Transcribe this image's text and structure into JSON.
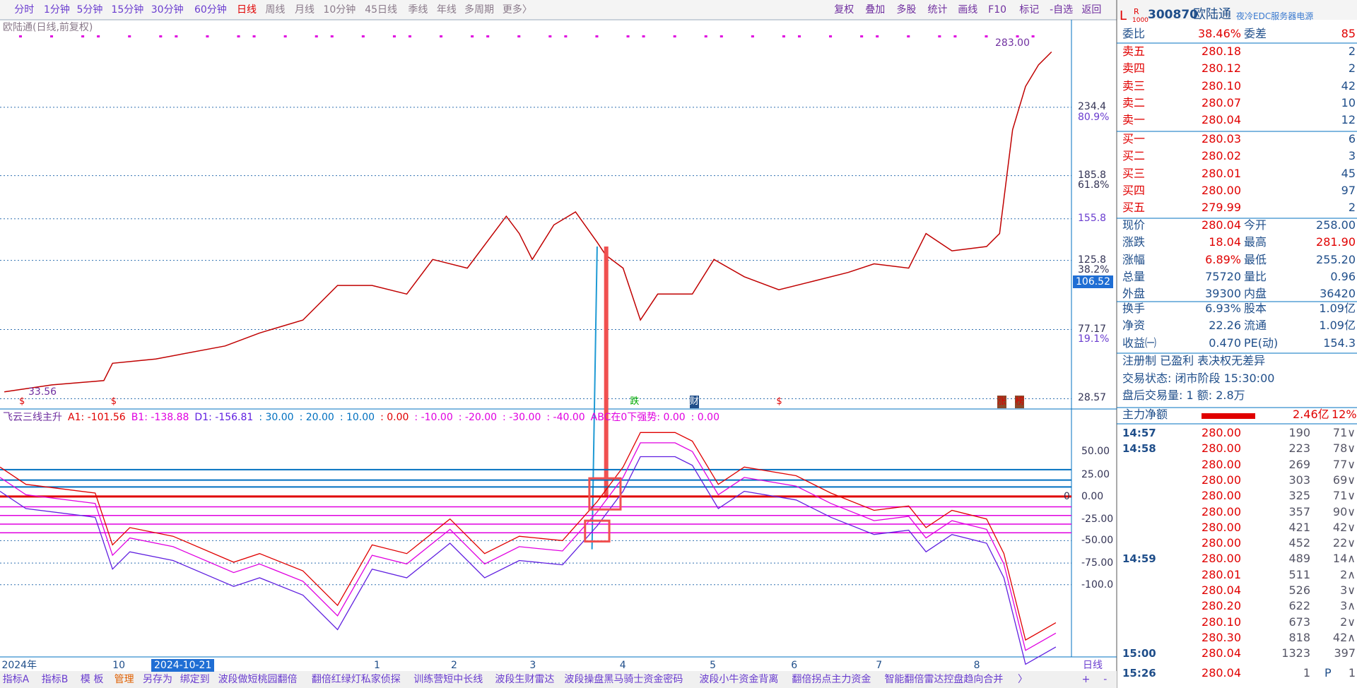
{
  "toolbar": {
    "periods": [
      "分时",
      "1分钟",
      "5分钟",
      "15分钟",
      "30分钟",
      "60分钟",
      "日线",
      "周线",
      "月线",
      "10分钟",
      "45日线",
      "季线",
      "年线",
      "多周期",
      "更多〉"
    ],
    "actions": [
      "复权",
      "叠加",
      "多股",
      "统计",
      "画线",
      "F10",
      "标记",
      "-自选",
      "返回"
    ]
  },
  "chart": {
    "title": "欧陆通(日线,前复权)",
    "high_label": "283.00",
    "low_label": "33.56",
    "current_price_label": "106.52",
    "price_axis": [
      "234.4",
      "80.9%",
      "185.8",
      "61.8%",
      "155.8",
      "125.8",
      "38.2%",
      "77.17",
      "19.1%",
      "28.57"
    ],
    "markers": [
      "$",
      "$",
      "跌",
      "财",
      "$",
      "涨",
      "榜"
    ]
  },
  "indicator": {
    "legend": [
      {
        "text": "飞云三线主升",
        "color": "#7030a0"
      },
      {
        "text": "A1: -101.56",
        "color": "#e00000"
      },
      {
        "text": "B1: -138.88",
        "color": "#e000e0"
      },
      {
        "text": "D1: -156.81",
        "color": "#6020e0"
      },
      {
        "text": ": 30.00",
        "color": "#0070c0"
      },
      {
        "text": ": 20.00",
        "color": "#0070c0"
      },
      {
        "text": ": 10.00",
        "color": "#0070c0"
      },
      {
        "text": ": 0.00",
        "color": "#e00000"
      },
      {
        "text": ": -10.00",
        "color": "#e000e0"
      },
      {
        "text": ": -20.00",
        "color": "#e000e0"
      },
      {
        "text": ": -30.00",
        "color": "#e000e0"
      },
      {
        "text": ": -40.00",
        "color": "#e000e0"
      },
      {
        "text": "ABC在0下强势: 0.00",
        "color": "#e000e0"
      },
      {
        "text": ": 0.00",
        "color": "#e000e0"
      }
    ],
    "axis": [
      "50.00",
      "25.00",
      "0.00",
      "-25.00",
      "-50.00",
      "-75.00",
      "-100.0"
    ],
    "zero_tag": "0"
  },
  "date_axis": {
    "labels": [
      "2024年",
      "10",
      "1",
      "2",
      "3",
      "4",
      "5",
      "6",
      "7",
      "8"
    ],
    "highlight": "2024-10-21",
    "period": "日线"
  },
  "tabs": [
    "指标A",
    "指标B",
    "模 板",
    "管理",
    "另存为",
    "绑定到",
    "波段做短桃园翻倍",
    "翻倍红绿灯私家侦探",
    "训练营短中长线",
    "波段生财雷达",
    "波段操盘黑马骑士资金密码",
    "波段小牛资金背离",
    "翻倍拐点主力资金",
    "智能翻倍雷达控盘趋向合并",
    "〉",
    "+",
    "-"
  ],
  "quote": {
    "header": {
      "l": "L",
      "r": "R",
      "r_sub": "1000",
      "code": "300870",
      "name": "欧陆通",
      "tag": "夜冷EDC服务器电源"
    },
    "ratio": {
      "label": "委比",
      "value": "38.46%",
      "label2": "委差",
      "value2": "85"
    },
    "sell": [
      {
        "label": "卖五",
        "price": "280.18",
        "vol": "2"
      },
      {
        "label": "卖四",
        "price": "280.12",
        "vol": "2"
      },
      {
        "label": "卖三",
        "price": "280.10",
        "vol": "42"
      },
      {
        "label": "卖二",
        "price": "280.07",
        "vol": "10"
      },
      {
        "label": "卖一",
        "price": "280.04",
        "vol": "12"
      }
    ],
    "buy": [
      {
        "label": "买一",
        "price": "280.03",
        "vol": "6"
      },
      {
        "label": "买二",
        "price": "280.02",
        "vol": "3"
      },
      {
        "label": "买三",
        "price": "280.01",
        "vol": "45"
      },
      {
        "label": "买四",
        "price": "280.00",
        "vol": "97"
      },
      {
        "label": "买五",
        "price": "279.99",
        "vol": "2"
      }
    ],
    "stats": [
      [
        "现价",
        "280.04",
        "今开",
        "258.00"
      ],
      [
        "涨跌",
        "18.04",
        "最高",
        "281.90"
      ],
      [
        "涨幅",
        "6.89%",
        "最低",
        "255.20"
      ],
      [
        "总量",
        "75720",
        "量比",
        "0.96"
      ],
      [
        "外盘",
        "39300",
        "内盘",
        "36420"
      ],
      [
        "换手",
        "6.93%",
        "股本",
        "1.09亿"
      ],
      [
        "净资",
        "22.26",
        "流通",
        "1.09亿"
      ],
      [
        "收益㈠",
        "0.470",
        "PE(动)",
        "154.3"
      ]
    ],
    "info": [
      "注册制 已盈利 表决权无差异",
      "交易状态: 闭市阶段 15:30:00",
      "盘后交易量: 1  额: 2.8万"
    ],
    "flow": {
      "label": "主力净额",
      "value": "2.46亿",
      "pct": "12%"
    },
    "trades": [
      {
        "time": "14:57",
        "price": "280.00",
        "vol": "190",
        "n": "71∨"
      },
      {
        "time": "14:58",
        "price": "280.00",
        "vol": "223",
        "n": "78∨"
      },
      {
        "time": null,
        "price": "280.00",
        "vol": "269",
        "n": "77∨"
      },
      {
        "time": null,
        "price": "280.00",
        "vol": "303",
        "n": "69∨"
      },
      {
        "time": null,
        "price": "280.00",
        "vol": "325",
        "n": "71∨"
      },
      {
        "time": null,
        "price": "280.00",
        "vol": "357",
        "n": "90∨"
      },
      {
        "time": null,
        "price": "280.00",
        "vol": "421",
        "n": "42∨"
      },
      {
        "time": null,
        "price": "280.00",
        "vol": "452",
        "n": "22∨"
      },
      {
        "time": "14:59",
        "price": "280.00",
        "vol": "489",
        "n": "14∧"
      },
      {
        "time": null,
        "price": "280.01",
        "vol": "511",
        "n": "2∧"
      },
      {
        "time": null,
        "price": "280.04",
        "vol": "526",
        "n": "3∨"
      },
      {
        "time": null,
        "price": "280.20",
        "vol": "622",
        "n": "3∧"
      },
      {
        "time": null,
        "price": "280.10",
        "vol": "673",
        "n": "2∨"
      },
      {
        "time": null,
        "price": "280.30",
        "vol": "818",
        "n": "42∧"
      },
      {
        "time": "15:00",
        "price": "280.04",
        "vol": "1323",
        "n": "397"
      },
      {
        "time": "15:26",
        "price": "280.04",
        "vol": "1",
        "flag": "P",
        "n": "1"
      }
    ]
  }
}
